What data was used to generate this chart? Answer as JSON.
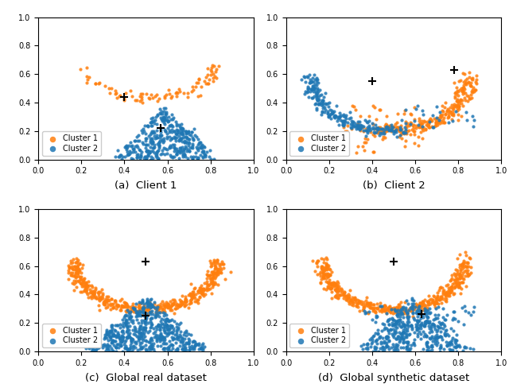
{
  "seed": 42,
  "orange_color": "#ff7f0e",
  "blue_color": "#1f77b4",
  "marker_size": 3,
  "titles": [
    "(a)  Client 1",
    "(b)  Client 2",
    "(c)  Global real dataset",
    "(d)  Global synthetic dataset"
  ],
  "xlim": [
    0.0,
    1.0
  ],
  "ylim": [
    0.0,
    1.0
  ],
  "legend_label1": "Cluster 1",
  "legend_label2": "Cluster 2"
}
